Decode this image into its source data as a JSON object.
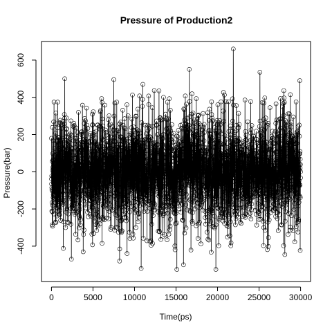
{
  "chart_data": {
    "type": "line",
    "title": "Pressure of Production2",
    "xlabel": "Time(ps)",
    "ylabel": "Pressure(bar)",
    "xlim": [
      -1200,
      31200
    ],
    "ylim": [
      -590,
      700
    ],
    "x_ticks": [
      0,
      5000,
      10000,
      15000,
      20000,
      25000,
      30000
    ],
    "x_tick_labels": [
      "0",
      "5000",
      "10000",
      "15000",
      "20000",
      "25000",
      "30000"
    ],
    "y_ticks": [
      -400,
      -200,
      0,
      200,
      400,
      600
    ],
    "y_tick_labels": [
      "-400",
      "-200",
      "0",
      "200",
      "400",
      "600"
    ],
    "grid": false,
    "legend": "none",
    "line_color": "#000000",
    "marker": "open-circle",
    "series": [
      {
        "x_start": 0,
        "x_end": 30000,
        "x_step": 10,
        "approx_mean": 0,
        "approx_sd": 150,
        "notable_points": [
          {
            "x": 0,
            "y": 180
          },
          {
            "x": 1600,
            "y": 500
          },
          {
            "x": 2400,
            "y": -470
          },
          {
            "x": 7500,
            "y": 495
          },
          {
            "x": 8200,
            "y": -480
          },
          {
            "x": 10800,
            "y": -520
          },
          {
            "x": 11000,
            "y": 470
          },
          {
            "x": 15100,
            "y": -525
          },
          {
            "x": 15900,
            "y": -500
          },
          {
            "x": 16600,
            "y": 550
          },
          {
            "x": 19800,
            "y": -525
          },
          {
            "x": 21900,
            "y": 660
          },
          {
            "x": 25100,
            "y": 535
          },
          {
            "x": 28100,
            "y": -445
          },
          {
            "x": 29900,
            "y": 490
          },
          {
            "x": 30000,
            "y": 0
          }
        ]
      }
    ]
  }
}
